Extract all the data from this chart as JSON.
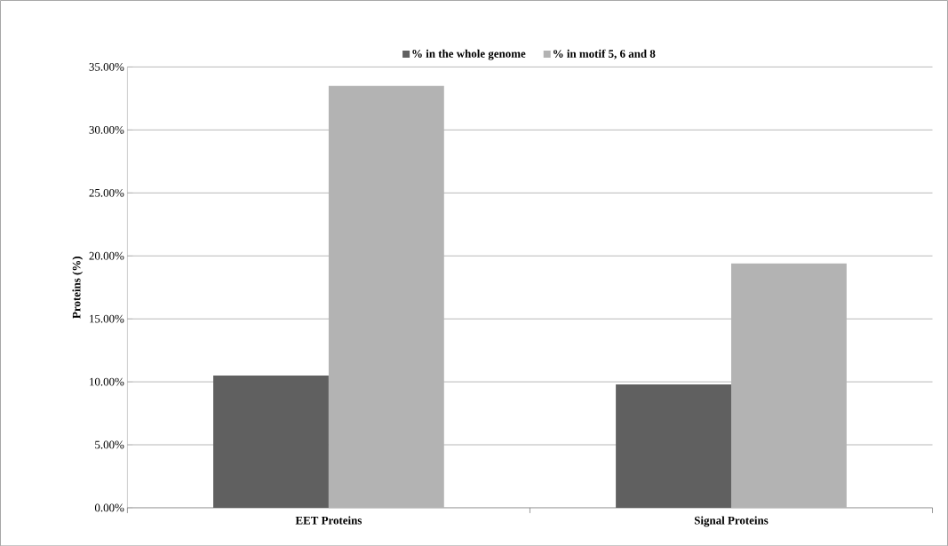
{
  "chart_data": {
    "type": "bar",
    "ylabel": "Proteins (%)",
    "categories": [
      "EET Proteins",
      "Signal Proteins"
    ],
    "series": [
      {
        "name": "% in the whole genome",
        "color": "#606060",
        "values": [
          10.5,
          9.8
        ]
      },
      {
        "name": "% in motif 5, 6 and 8",
        "color": "#b3b3b3",
        "values": [
          33.5,
          19.4
        ]
      }
    ],
    "ylim": [
      0,
      35
    ],
    "yticks": [
      {
        "value": 0,
        "label": "0.00%"
      },
      {
        "value": 5,
        "label": "5.00%"
      },
      {
        "value": 10,
        "label": "10.00%"
      },
      {
        "value": 15,
        "label": "15.00%"
      },
      {
        "value": 20,
        "label": "20.00%"
      },
      {
        "value": 25,
        "label": "25.00%"
      },
      {
        "value": 30,
        "label": "30.00%"
      },
      {
        "value": 35,
        "label": "35.00%"
      }
    ],
    "grid": "y",
    "legend": "top"
  }
}
